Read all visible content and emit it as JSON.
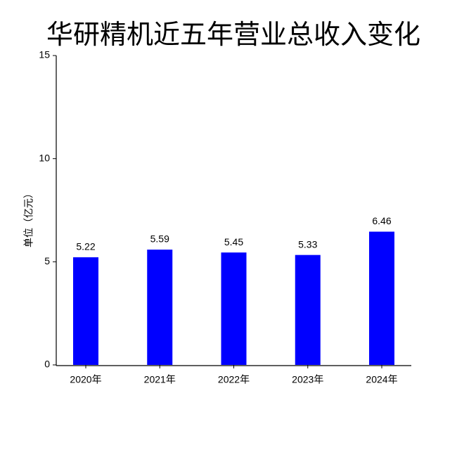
{
  "chart_data": {
    "type": "bar",
    "title": "华研精机近五年营业总收入变化",
    "y_label": "单位（亿元）",
    "categories": [
      "2020年",
      "2021年",
      "2022年",
      "2023年",
      "2024年"
    ],
    "values": [
      5.22,
      5.59,
      5.45,
      5.33,
      6.46
    ],
    "color": "#0000ff",
    "ylim": [
      0,
      15
    ],
    "yticks": [
      0,
      5,
      10,
      15
    ],
    "grid": false
  }
}
